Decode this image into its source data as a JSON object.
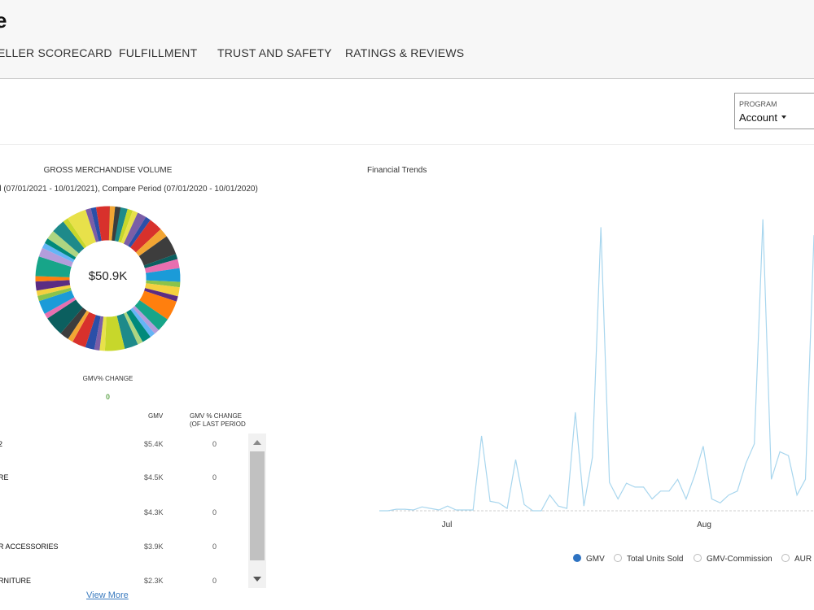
{
  "header": {
    "title": "e",
    "tabs": [
      {
        "label": "ELLER SCORECARD"
      },
      {
        "label": "FULFILLMENT"
      },
      {
        "label": "TRUST AND SAFETY"
      },
      {
        "label": "RATINGS & REVIEWS"
      }
    ]
  },
  "filters": {
    "program_label": "PROGRAM",
    "program_value": "Account"
  },
  "gmv": {
    "title": "GROSS MERCHANDISE VOLUME",
    "subtitle": "d (07/01/2021 - 10/01/2021), Compare Period (07/01/2020 - 10/01/2020)",
    "center_value": "$50.9K",
    "change_label": "GMV% CHANGE",
    "change_value": "0",
    "slice_colors": [
      "#1e8a8a",
      "#c7d72b",
      "#e8e14a",
      "#7b5ea7",
      "#2b4fa8",
      "#d8312c",
      "#f2a533",
      "#3d3d3d",
      "#0b5f5f",
      "#e76fb0",
      "#1b9bd8",
      "#8bc34a",
      "#f4d03f",
      "#5b2c83",
      "#ff7f0e",
      "#17a589",
      "#b39ddb",
      "#64b5f6",
      "#00897b",
      "#aed581"
    ],
    "table": {
      "col_gmv": "GMV",
      "col_change_1": "GMV % CHANGE",
      "col_change_2": "(OF LAST PERIOD",
      "rows": [
        {
          "category": "2",
          "gmv": "$5.4K",
          "change": "0"
        },
        {
          "category": "RE",
          "gmv": "$4.5K",
          "change": "0"
        },
        {
          "category": "",
          "gmv": "$4.3K",
          "change": "0"
        },
        {
          "category": "R ACCESSORIES",
          "gmv": "$3.9K",
          "change": "0"
        },
        {
          "category": "RNITURE",
          "gmv": "$2.3K",
          "change": "0"
        }
      ]
    },
    "view_more": "View More"
  },
  "trends": {
    "title": "Financial Trends",
    "legend": [
      {
        "label": "GMV",
        "active": true
      },
      {
        "label": "Total Units Sold",
        "active": false
      },
      {
        "label": "GMV-Commission",
        "active": false
      },
      {
        "label": "AUR",
        "active": false
      }
    ]
  },
  "chart_data": {
    "type": "line",
    "title": "Financial Trends",
    "xlabel": "",
    "ylabel": "",
    "x_tick_labels": [
      "Jul",
      "Aug"
    ],
    "grid": false,
    "legend_placement": "bottom",
    "series": [
      {
        "name": "GMV",
        "color": "#a8d6ee",
        "values": [
          0,
          0,
          2,
          2,
          1,
          5,
          3,
          1,
          6,
          1,
          1,
          1,
          95,
          12,
          10,
          3,
          65,
          8,
          0,
          0,
          20,
          6,
          3,
          125,
          6,
          68,
          360,
          36,
          15,
          35,
          30,
          30,
          15,
          25,
          25,
          40,
          15,
          45,
          82,
          15,
          10,
          20,
          25,
          60,
          85,
          370,
          40,
          75,
          70,
          20,
          40,
          350
        ]
      }
    ]
  }
}
